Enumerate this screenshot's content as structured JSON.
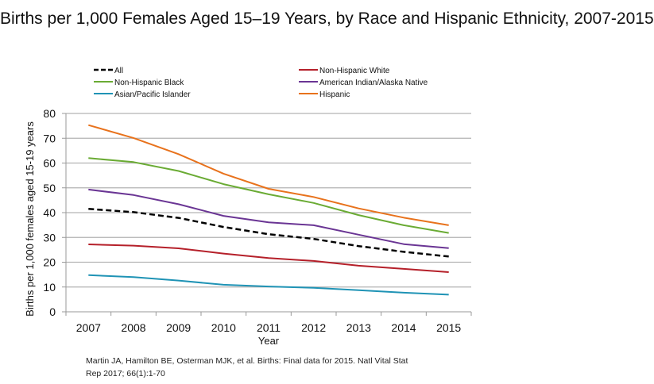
{
  "chart_data": {
    "type": "line",
    "title": "Births per 1,000 Females Aged 15–19 Years, by Race and Hispanic Ethnicity, 2007-2015",
    "xlabel": "Year",
    "ylabel": "Births per 1,000 females aged 15-19 years",
    "ylim": [
      0,
      80
    ],
    "yticks": [
      0,
      10,
      20,
      30,
      40,
      50,
      60,
      70,
      80
    ],
    "grid": true,
    "legend_position": "top",
    "categories": [
      "2007",
      "2008",
      "2009",
      "2010",
      "2011",
      "2012",
      "2013",
      "2014",
      "2015"
    ],
    "series": [
      {
        "name": "All",
        "color": "#000000",
        "dashed": true,
        "values": [
          41.5,
          40.2,
          37.9,
          34.2,
          31.3,
          29.4,
          26.5,
          24.2,
          22.3
        ]
      },
      {
        "name": "Non-Hispanic White",
        "color": "#b5202a",
        "dashed": false,
        "values": [
          27.2,
          26.7,
          25.6,
          23.5,
          21.7,
          20.5,
          18.6,
          17.3,
          16.0
        ]
      },
      {
        "name": "Non-Hispanic Black",
        "color": "#6aab34",
        "dashed": false,
        "values": [
          62.0,
          60.4,
          56.8,
          51.5,
          47.4,
          43.9,
          39.0,
          34.9,
          31.8
        ]
      },
      {
        "name": "American Indian/Alaska Native",
        "color": "#6a3594",
        "dashed": false,
        "values": [
          49.3,
          47.1,
          43.4,
          38.7,
          36.1,
          34.9,
          31.1,
          27.3,
          25.7
        ]
      },
      {
        "name": "Asian/Pacific Islander",
        "color": "#1f93b5",
        "dashed": false,
        "values": [
          14.8,
          14.0,
          12.6,
          10.9,
          10.2,
          9.7,
          8.7,
          7.7,
          6.9
        ]
      },
      {
        "name": "Hispanic",
        "color": "#e8721c",
        "dashed": false,
        "values": [
          75.3,
          70.1,
          63.6,
          55.7,
          49.6,
          46.3,
          41.7,
          38.0,
          34.9
        ]
      }
    ]
  },
  "citation": {
    "line1": "Martin JA, Hamilton BE, Osterman MJK, et al. Births: Final data for 2015. Natl Vital Stat",
    "line2": "Rep 2017; 66(1):1-70"
  }
}
